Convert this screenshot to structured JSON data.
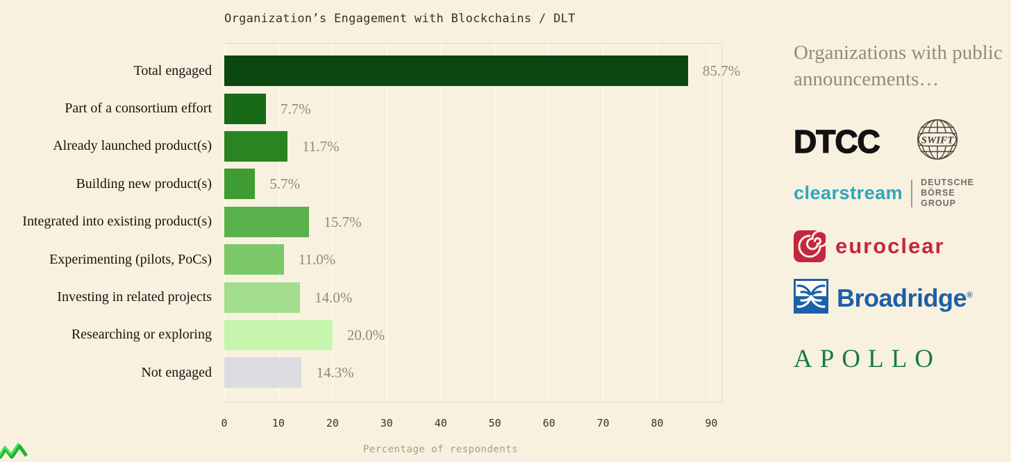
{
  "page": {
    "background": "#f9f1df"
  },
  "chart_data": {
    "type": "bar",
    "orientation": "horizontal",
    "title": "Organization’s Engagement with Blockchains / DLT",
    "xlabel": "Percentage of respondents",
    "categories": [
      "Total engaged",
      "Part of a consortium effort",
      "Already launched product(s)",
      "Building new product(s)",
      "Integrated into existing product(s)",
      "Experimenting (pilots, PoCs)",
      "Investing in related projects",
      "Researching or exploring",
      "Not engaged"
    ],
    "values": [
      85.7,
      7.7,
      11.7,
      5.7,
      15.7,
      11.0,
      14.0,
      20.0,
      14.3
    ],
    "value_labels": [
      "85.7%",
      "7.7%",
      "11.7%",
      "5.7%",
      "15.7%",
      "11.0%",
      "14.0%",
      "20.0%",
      "14.3%"
    ],
    "bar_colors": [
      "#0b470f",
      "#176b16",
      "#2a8422",
      "#3f9c33",
      "#58b14a",
      "#7cc96a",
      "#a2dd8e",
      "#c6f5ae",
      "#dbdcdf"
    ],
    "x_ticks": [
      0,
      10,
      20,
      30,
      40,
      50,
      60,
      70,
      80,
      90
    ],
    "xlim": [
      0,
      92
    ],
    "grid": "vertical",
    "legend_position": "none"
  },
  "side_panel": {
    "heading": "Organizations with public announcements…",
    "logos": {
      "dtcc": "DTCC",
      "swift": "SWIFT",
      "clearstream": "clearstream",
      "deutsche_borse_line1": "DEUTSCHE BÖRSE",
      "deutsche_borse_line2": "GROUP",
      "euroclear": "euroclear",
      "broadridge": "Broadridge",
      "broadridge_reg": "®",
      "apollo": "APOLLO"
    },
    "colors": {
      "heading": "#8e8c81",
      "dtcc": "#121212",
      "swift_stroke": "#45433c",
      "clearstream": "#2ba7bd",
      "deutsche_borse": "#6d6d6d",
      "euroclear": "#c32740",
      "broadridge": "#1d5fa8",
      "apollo": "#16794a",
      "scribble": "#1db32f"
    }
  }
}
